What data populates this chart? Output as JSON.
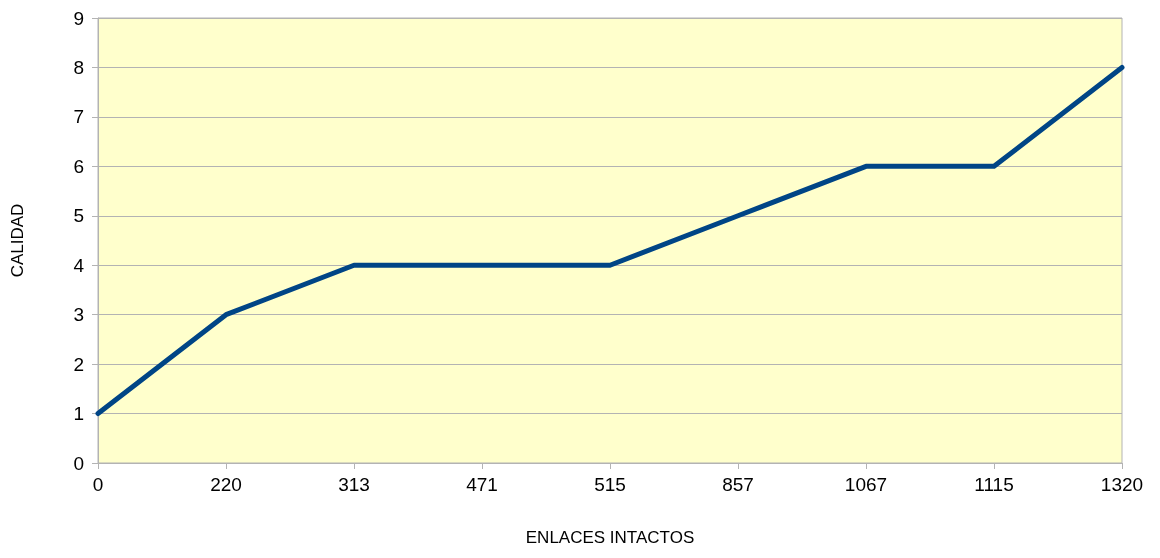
{
  "chart_data": {
    "type": "line",
    "xlabel": "ENLACES INTACTOS",
    "ylabel": "CALIDAD",
    "categories": [
      "0",
      "220",
      "313",
      "471",
      "515",
      "857",
      "1067",
      "1115",
      "1320"
    ],
    "series": [
      {
        "color": "#004586",
        "values": [
          1,
          3,
          4,
          4,
          4,
          5,
          6,
          6,
          8
        ]
      }
    ],
    "ylim": [
      0,
      9
    ],
    "yticks": [
      0,
      1,
      2,
      3,
      4,
      5,
      6,
      7,
      8,
      9
    ],
    "grid": "y",
    "marker": "none",
    "line_style": "solid"
  }
}
